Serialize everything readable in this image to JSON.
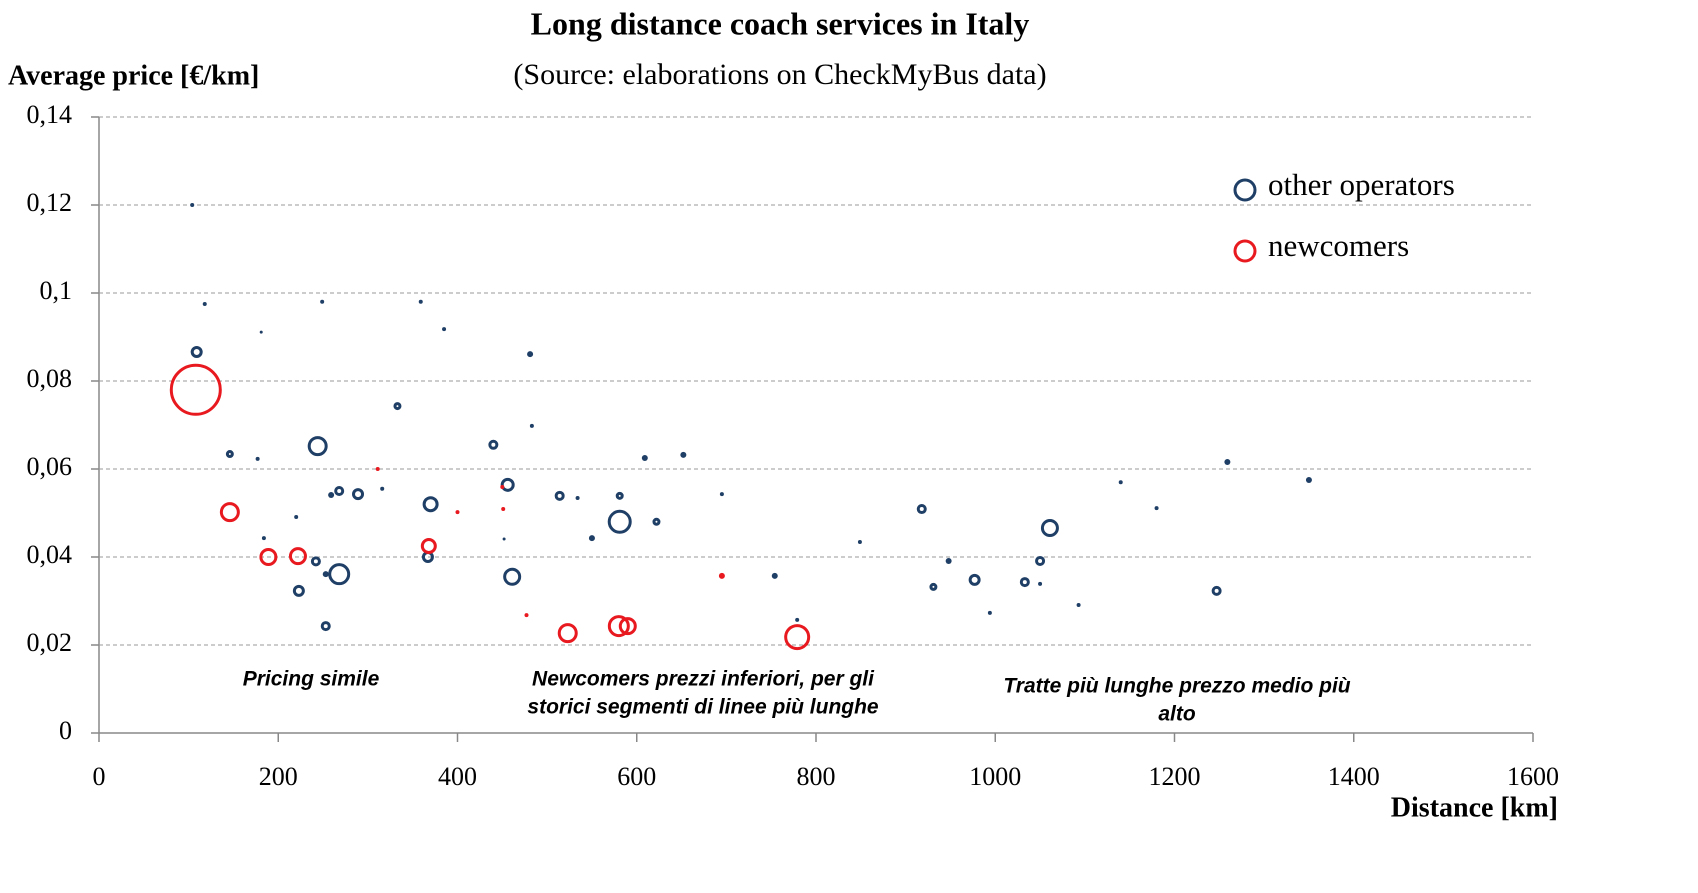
{
  "chart_data": {
    "type": "scatter",
    "title": "Long distance coach services in Italy",
    "subtitle": "(Source: elaborations on CheckMyBus data)",
    "ylabel": "Average price [€/km]",
    "xlabel": "Distance [km]",
    "xlim": [
      0,
      1600
    ],
    "xticks": [
      0,
      200,
      400,
      600,
      800,
      1000,
      1200,
      1400,
      1600
    ],
    "ylim": [
      0,
      0.14
    ],
    "yticks": [
      0,
      {
        "value": 0.02,
        "label": "0,02"
      },
      {
        "value": 0.04,
        "label": "0,04"
      },
      {
        "value": 0.06,
        "label": "0,06"
      },
      {
        "value": 0.08,
        "label": "0,08"
      },
      {
        "value": 0.1,
        "label": "0,1"
      },
      {
        "value": 0.12,
        "label": "0,12"
      },
      {
        "value": 0.14,
        "label": "0,14"
      }
    ],
    "grid": true,
    "legend": "upper right",
    "annotations": [
      [
        "Pricing simile"
      ],
      [
        "Newcomers prezzi inferiori, per gli",
        "storici segmenti di linee più lunghe"
      ],
      [
        "Tratte  più lunghe prezzo medio più",
        "alto"
      ]
    ],
    "series": [
      {
        "name": "other operators",
        "color": "#1f3f66",
        "x": [
          104,
          109,
          118,
          146,
          181,
          177,
          184,
          220,
          223,
          242,
          244,
          249,
          253,
          259,
          268,
          268,
          253,
          289,
          316,
          333,
          359,
          367,
          370,
          385,
          440,
          452,
          456,
          461,
          481,
          483,
          514,
          534,
          550,
          581,
          581,
          622,
          609,
          652,
          695,
          754,
          779,
          849,
          918,
          931,
          948,
          977,
          994,
          1033,
          1050,
          1050,
          1061,
          1093,
          1140,
          1180,
          1247,
          1259,
          1350
        ],
        "values": [
          0.12,
          0.0866,
          0.0975,
          0.0634,
          0.0911,
          0.0623,
          0.0443,
          0.0491,
          0.0323,
          0.039,
          0.0652,
          0.098,
          0.0361,
          0.0541,
          0.055,
          0.0361,
          0.0243,
          0.0543,
          0.0555,
          0.0743,
          0.098,
          0.04,
          0.052,
          0.0918,
          0.0655,
          0.0441,
          0.0564,
          0.0355,
          0.0861,
          0.0698,
          0.0539,
          0.0534,
          0.0443,
          0.0539,
          0.048,
          0.048,
          0.0625,
          0.0632,
          0.0543,
          0.0357,
          0.0257,
          0.0434,
          0.0509,
          0.0332,
          0.0391,
          0.0348,
          0.0273,
          0.0343,
          0.0391,
          0.0339,
          0.0466,
          0.0291,
          0.057,
          0.0511,
          0.0323,
          0.0616,
          0.0575
        ],
        "sizes": [
          2,
          6,
          2,
          4,
          1.5,
          2,
          2,
          2,
          6,
          5,
          10,
          2,
          3,
          3,
          5,
          11,
          5,
          6,
          2,
          4,
          2,
          6,
          8,
          2,
          5,
          1.5,
          7,
          9,
          3,
          2,
          5,
          2,
          3,
          4,
          12,
          4,
          3,
          3,
          2,
          3,
          2,
          2,
          5,
          4,
          3,
          6,
          2,
          5,
          5,
          2,
          9,
          2,
          2,
          2,
          5,
          3,
          3
        ]
      },
      {
        "name": "newcomers",
        "color": "#e8191f",
        "x": [
          108,
          146,
          189,
          222,
          311,
          368,
          400,
          451,
          450,
          477,
          523,
          580,
          590,
          695,
          779
        ],
        "values": [
          0.078,
          0.0502,
          0.04,
          0.0402,
          0.06,
          0.0425,
          0.0502,
          0.0509,
          0.0559,
          0.0268,
          0.0227,
          0.0243,
          0.0243,
          0.0357,
          0.0218
        ],
        "sizes": [
          26,
          10,
          9,
          9,
          2,
          8,
          2,
          2,
          2,
          2,
          10,
          11,
          9,
          3,
          13
        ]
      }
    ]
  }
}
